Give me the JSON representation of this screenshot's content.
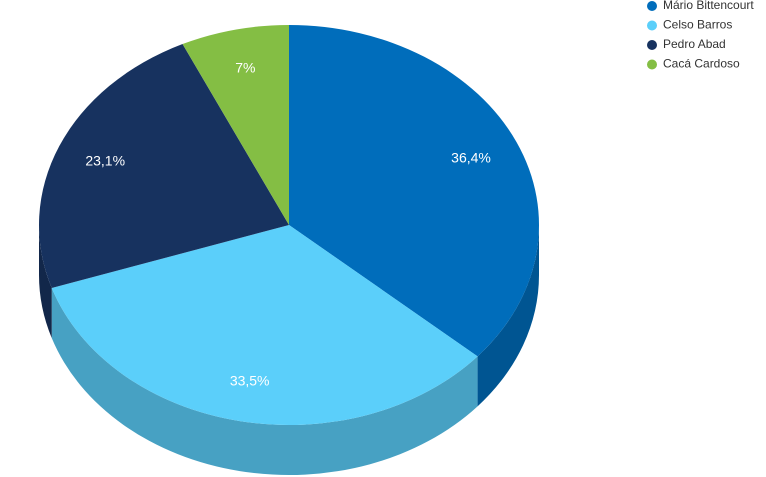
{
  "chart_data": {
    "type": "pie",
    "categories": [
      "Mário Bittencourt",
      "Celso Barros",
      "Pedro Abad",
      "Cacá Cardoso"
    ],
    "values": [
      36.4,
      33.5,
      23.1,
      7
    ],
    "value_labels": [
      "36,4%",
      "33,5%",
      "23,1%",
      "7%"
    ],
    "colors": [
      "#006dbb",
      "#5bcffa",
      "#17325f",
      "#84be44"
    ],
    "legend": "top-right"
  }
}
